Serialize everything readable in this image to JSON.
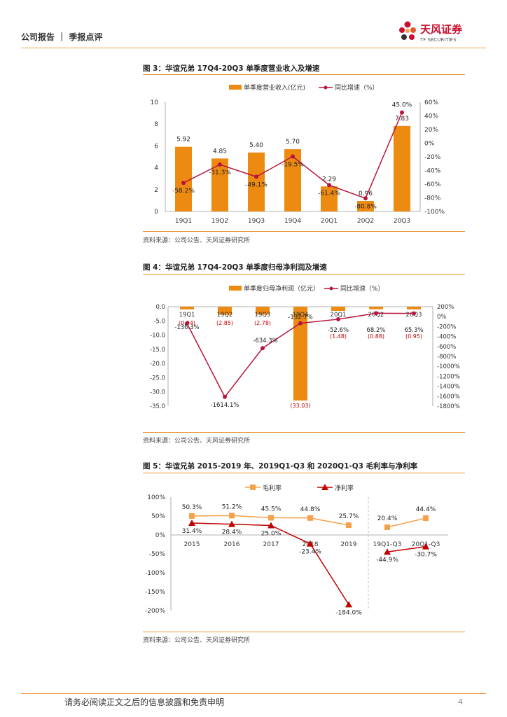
{
  "header": {
    "left": "公司报告 ｜ 季报点评",
    "logo_text": "天风证券",
    "logo_sub": "TF SECURITIES"
  },
  "colors": {
    "orange": "#ed8a12",
    "red": "#b8153a",
    "lineOrange": "#f5a04a",
    "darkred": "#c00000",
    "accent": "#e7922f"
  },
  "charts": [
    {
      "type": "bar+line",
      "title": "图 3：华谊兄弟 17Q4-20Q3 单季度营业收入及增速",
      "source": "资料来源：公司公告、天风证券研究所",
      "legend": [
        "单季度营业收入(亿元)",
        "同比增速（%）"
      ],
      "categories": [
        "19Q1",
        "19Q2",
        "19Q3",
        "19Q4",
        "20Q1",
        "20Q2",
        "20Q3"
      ],
      "bar_values": [
        5.92,
        4.85,
        5.4,
        5.7,
        2.29,
        0.96,
        7.83
      ],
      "bar_labels": [
        "5.92",
        "4.85",
        "5.40",
        "5.70",
        "2.29",
        "0.96",
        "7.83"
      ],
      "line_values": [
        -58.2,
        -31.3,
        -49.1,
        -19.5,
        -61.4,
        -80.8,
        45.0
      ],
      "line_labels": [
        "-58.2%",
        "-31.3%",
        "-49.1%",
        "-19.5%",
        "-61.4%",
        "-80.8%",
        "45.0%"
      ],
      "left_ticks": [
        "10",
        "8",
        "6",
        "4",
        "2",
        "0"
      ],
      "right_ticks": [
        "60%",
        "40%",
        "20%",
        "0%",
        "-20%",
        "-40%",
        "-60%",
        "-80%",
        "-100%"
      ],
      "left_range": [
        0,
        10
      ],
      "right_range": [
        -100,
        60
      ]
    },
    {
      "type": "bar+line",
      "title": "图 4：华谊兄弟 17Q4-20Q3 单季度归母净利润及增速",
      "source": "资料来源：公司公告、天风证券研究所",
      "legend": [
        "单季度归母净利润（亿元）",
        "同比增速（%）"
      ],
      "categories": [
        "19Q1",
        "19Q2",
        "19Q3",
        "19Q4",
        "20Q1",
        "20Q2",
        "20Q3"
      ],
      "bar_values": [
        -0.94,
        -2.85,
        -2.78,
        -33.03,
        -1.48,
        -0.88,
        -0.95
      ],
      "bar_labels": [
        "(0.94)",
        "(2.85)",
        "(2.78)",
        "(33.03)",
        "(1.48)",
        "(0.88)",
        "(0.95)"
      ],
      "line_values": [
        -136.3,
        -1614.1,
        -634.3,
        -132.7,
        -52.6,
        68.2,
        65.3
      ],
      "line_labels": [
        "-136.3%",
        "-1614.1%",
        "-634.3%",
        "-132.7%",
        "-52.6%",
        "68.2%",
        "65.3%"
      ],
      "left_ticks": [
        "0.0",
        "-5.0",
        "-10.0",
        "-15.0",
        "-20.0",
        "-25.0",
        "-30.0",
        "-35.0"
      ],
      "right_ticks": [
        "200%",
        "0%",
        "-200%",
        "-400%",
        "-600%",
        "-800%",
        "-1000%",
        "-1200%",
        "-1400%",
        "-1600%",
        "-1800%"
      ],
      "left_range": [
        -35,
        0
      ],
      "right_range": [
        -1800,
        200
      ]
    },
    {
      "type": "line",
      "title": "图 5：华谊兄弟 2015-2019 年、2019Q1-Q3 和 2020Q1-Q3 毛利率与净利率",
      "source": "资料来源：公司公告、天风证券研究所",
      "legend": [
        "毛利率",
        "净利率"
      ],
      "categories": [
        "2015",
        "2016",
        "2017",
        "2018",
        "2019",
        "19Q1-Q3",
        "20Q1-Q3"
      ],
      "gross": [
        50.3,
        51.2,
        45.5,
        44.8,
        25.7,
        20.4,
        44.4
      ],
      "gross_labels": [
        "50.3%",
        "51.2%",
        "45.5%",
        "44.8%",
        "25.7%",
        "20.4%",
        "44.4%"
      ],
      "net": [
        31.4,
        28.4,
        25.0,
        -23.4,
        -184.0,
        -44.9,
        -30.7
      ],
      "net_labels": [
        "31.4%",
        "28.4%",
        "25.0%",
        "-23.4%",
        "-184.0%",
        "-44.9%",
        "-30.7%"
      ],
      "y_ticks": [
        "100%",
        "50%",
        "0%",
        "-50%",
        "-100%",
        "-150%",
        "-200%"
      ],
      "y_range": [
        -200,
        100
      ]
    }
  ],
  "footer": {
    "text": "请务必阅读正文之后的信息披露和免责申明",
    "page": "4"
  }
}
